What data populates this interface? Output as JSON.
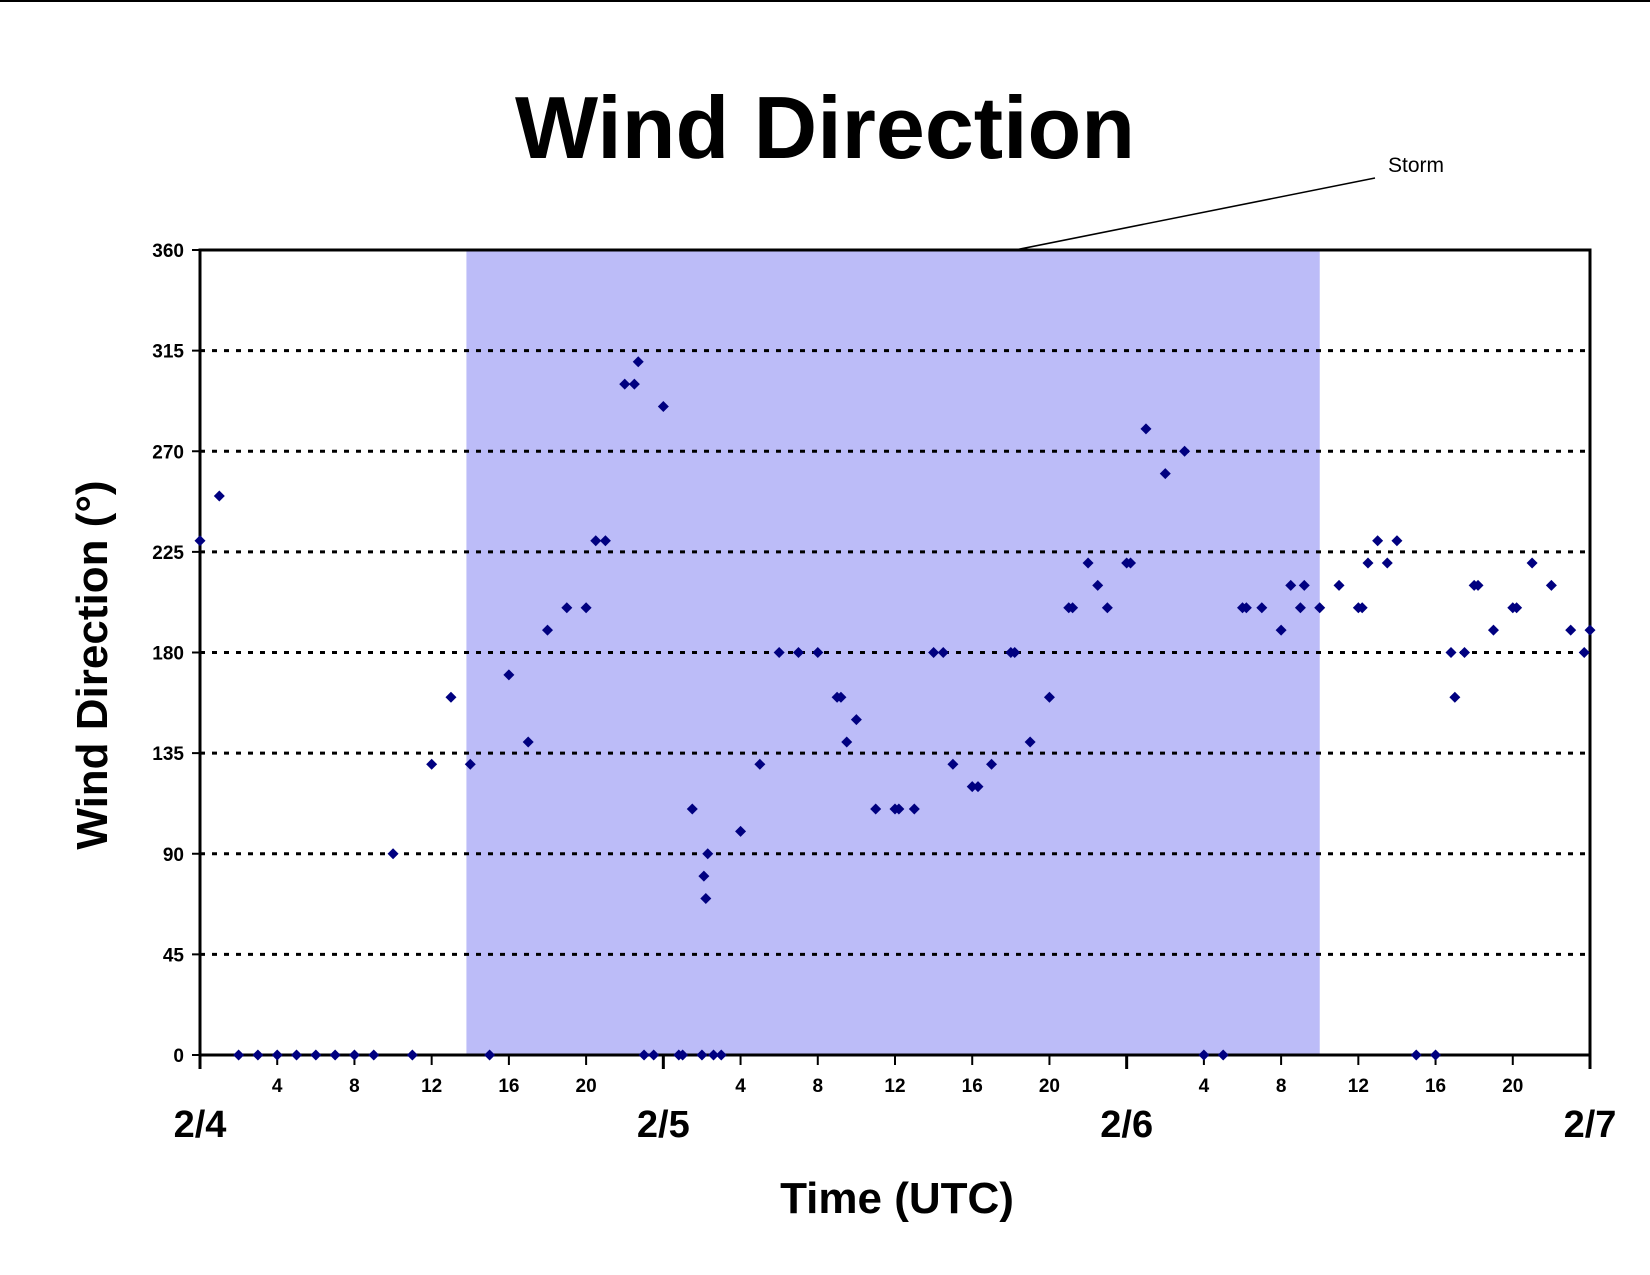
{
  "chart_data": {
    "type": "scatter",
    "title": "Wind Direction",
    "xlabel": "Time (UTC)",
    "ylabel": "Wind Direction (°)",
    "ylim": [
      0,
      360
    ],
    "yticks": [
      0,
      45,
      90,
      135,
      180,
      225,
      270,
      315,
      360
    ],
    "xlim": [
      0,
      72
    ],
    "x_unit": "hours since 2/4 00 UTC",
    "x_hour_ticks": [
      {
        "x": 4,
        "label": "4"
      },
      {
        "x": 8,
        "label": "8"
      },
      {
        "x": 12,
        "label": "12"
      },
      {
        "x": 16,
        "label": "16"
      },
      {
        "x": 20,
        "label": "20"
      },
      {
        "x": 28,
        "label": "4"
      },
      {
        "x": 32,
        "label": "8"
      },
      {
        "x": 36,
        "label": "12"
      },
      {
        "x": 40,
        "label": "16"
      },
      {
        "x": 44,
        "label": "20"
      },
      {
        "x": 52,
        "label": "4"
      },
      {
        "x": 56,
        "label": "8"
      },
      {
        "x": 60,
        "label": "12"
      },
      {
        "x": 64,
        "label": "16"
      },
      {
        "x": 68,
        "label": "20"
      }
    ],
    "x_date_ticks": [
      {
        "x": 0,
        "label": "2/4"
      },
      {
        "x": 24,
        "label": "2/5"
      },
      {
        "x": 48,
        "label": "2/6"
      },
      {
        "x": 72,
        "label": "2/7"
      }
    ],
    "grid": "horizontal dotted",
    "shaded_region": {
      "x_start": 13.8,
      "x_end": 58,
      "label": "Storm",
      "color": "#bcbcf8"
    },
    "marker_color": "#000080",
    "points": [
      [
        0,
        230
      ],
      [
        1,
        250
      ],
      [
        2,
        0
      ],
      [
        3,
        0
      ],
      [
        4,
        0
      ],
      [
        5,
        0
      ],
      [
        6,
        0
      ],
      [
        7,
        0
      ],
      [
        8,
        0
      ],
      [
        9,
        0
      ],
      [
        10,
        90
      ],
      [
        11,
        0
      ],
      [
        12,
        130
      ],
      [
        13,
        160
      ],
      [
        14,
        130
      ],
      [
        15,
        0
      ],
      [
        16,
        170
      ],
      [
        17,
        140
      ],
      [
        18,
        190
      ],
      [
        19,
        200
      ],
      [
        20,
        200
      ],
      [
        20.5,
        230
      ],
      [
        21,
        230
      ],
      [
        22,
        300
      ],
      [
        22.5,
        300
      ],
      [
        22.7,
        310
      ],
      [
        23,
        0
      ],
      [
        23.5,
        0
      ],
      [
        24,
        290
      ],
      [
        24.8,
        0
      ],
      [
        25,
        0
      ],
      [
        25.5,
        110
      ],
      [
        26,
        0
      ],
      [
        26.1,
        80
      ],
      [
        26.2,
        70
      ],
      [
        26.3,
        90
      ],
      [
        26.6,
        0
      ],
      [
        27,
        0
      ],
      [
        28,
        100
      ],
      [
        29,
        130
      ],
      [
        30,
        180
      ],
      [
        31,
        180
      ],
      [
        32,
        180
      ],
      [
        33,
        160
      ],
      [
        33.2,
        160
      ],
      [
        33.5,
        140
      ],
      [
        34,
        150
      ],
      [
        35,
        110
      ],
      [
        36,
        110
      ],
      [
        36.2,
        110
      ],
      [
        37,
        110
      ],
      [
        38,
        180
      ],
      [
        38.5,
        180
      ],
      [
        39,
        130
      ],
      [
        40,
        120
      ],
      [
        40.3,
        120
      ],
      [
        41,
        130
      ],
      [
        42,
        180
      ],
      [
        42.2,
        180
      ],
      [
        43,
        140
      ],
      [
        44,
        160
      ],
      [
        45,
        200
      ],
      [
        45.2,
        200
      ],
      [
        46,
        220
      ],
      [
        46.5,
        210
      ],
      [
        47,
        200
      ],
      [
        48,
        220
      ],
      [
        48.2,
        220
      ],
      [
        49,
        280
      ],
      [
        50,
        260
      ],
      [
        51,
        270
      ],
      [
        52,
        0
      ],
      [
        53,
        0
      ],
      [
        54,
        200
      ],
      [
        54.2,
        200
      ],
      [
        55,
        200
      ],
      [
        56,
        190
      ],
      [
        56.5,
        210
      ],
      [
        57,
        200
      ],
      [
        57.2,
        210
      ],
      [
        58,
        200
      ],
      [
        59,
        210
      ],
      [
        60,
        200
      ],
      [
        60.2,
        200
      ],
      [
        60.5,
        220
      ],
      [
        61,
        230
      ],
      [
        61.5,
        220
      ],
      [
        62,
        230
      ],
      [
        63,
        0
      ],
      [
        64,
        0
      ],
      [
        64.8,
        180
      ],
      [
        65,
        160
      ],
      [
        65.5,
        180
      ],
      [
        66,
        210
      ],
      [
        66.2,
        210
      ],
      [
        67,
        190
      ],
      [
        68,
        200
      ],
      [
        68.2,
        200
      ],
      [
        69,
        220
      ],
      [
        70,
        210
      ],
      [
        71,
        190
      ],
      [
        71.7,
        180
      ],
      [
        72,
        190
      ]
    ]
  }
}
